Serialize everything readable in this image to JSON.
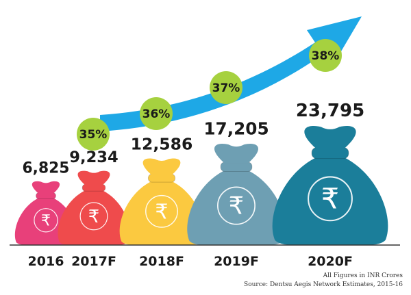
{
  "chart_data": {
    "type": "bar",
    "categories": [
      "2016",
      "2017F",
      "2018F",
      "2019F",
      "2020F"
    ],
    "values": [
      6825,
      9234,
      12586,
      17205,
      23795
    ],
    "value_labels": [
      "6,825",
      "9,234",
      "12,586",
      "17,205",
      "23,795"
    ],
    "growth_labels": [
      "35%",
      "36%",
      "37%",
      "38%"
    ],
    "bag_colors": [
      "#e8407a",
      "#ef4b4c",
      "#fbc940",
      "#6e9fb3",
      "#1b7e9a"
    ],
    "arrow_color": "#1ea8e6",
    "growth_circle_color": "#a6d13f",
    "currency_symbol": "₹"
  },
  "notes": {
    "units": "All Figures in INR Crores",
    "source": "Source: Dentsu Aegis Network Estimates, 2015-16"
  }
}
